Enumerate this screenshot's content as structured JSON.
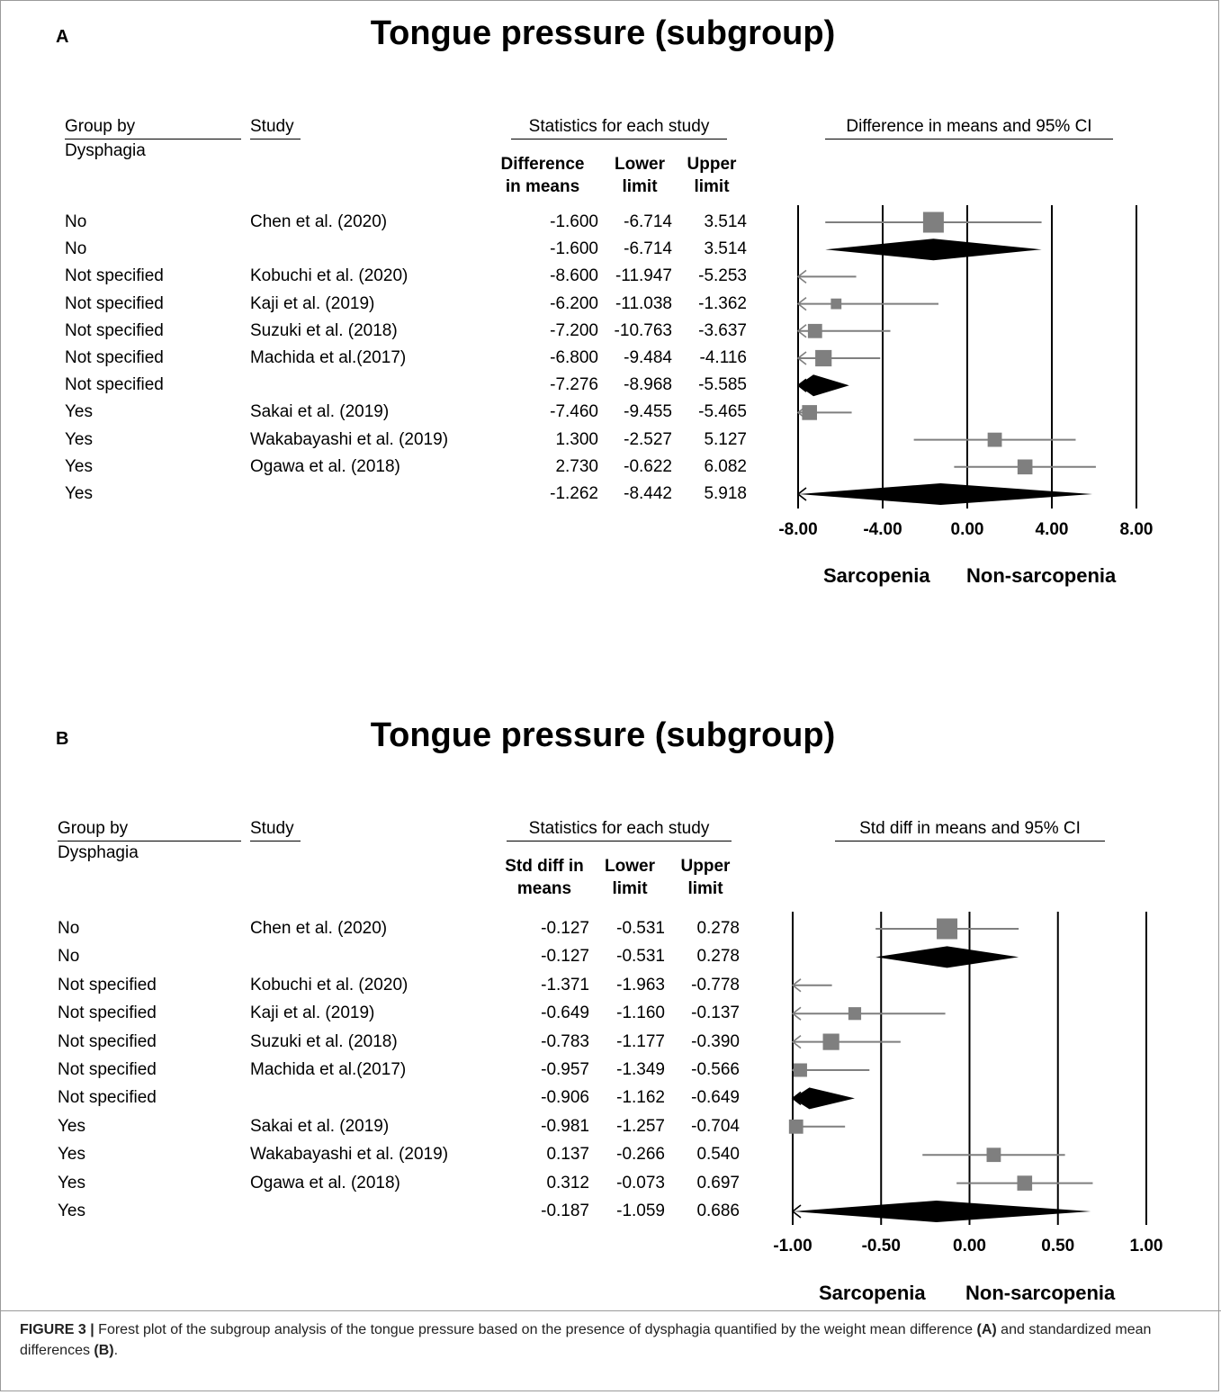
{
  "panels": [
    {
      "letter": "A",
      "title": "Tongue pressure (subgroup)",
      "headers": {
        "group": "Group by",
        "group_sub": "Dysphagia",
        "study": "Study",
        "stats": "Statistics for each study",
        "plot": "Difference in means and 95% CI",
        "col1": "Difference in means",
        "col2": "Lower limit",
        "col3": "Upper limit"
      },
      "rows": [
        {
          "group": "No",
          "study": "Chen et al. (2020)",
          "est": "-1.600",
          "lower": "-6.714",
          "upper": "3.514"
        },
        {
          "group": "No",
          "study": "",
          "est": "-1.600",
          "lower": "-6.714",
          "upper": "3.514"
        },
        {
          "group": "Not specified",
          "study": "Kobuchi et al. (2020)",
          "est": "-8.600",
          "lower": "-11.947",
          "upper": "-5.253"
        },
        {
          "group": "Not specified",
          "study": "Kaji et al.  (2019)",
          "est": "-6.200",
          "lower": "-11.038",
          "upper": "-1.362"
        },
        {
          "group": "Not specified",
          "study": "Suzuki et al. (2018)",
          "est": "-7.200",
          "lower": "-10.763",
          "upper": "-3.637"
        },
        {
          "group": "Not specified",
          "study": "Machida et al.(2017)",
          "est": "-6.800",
          "lower": "-9.484",
          "upper": "-4.116"
        },
        {
          "group": "Not specified",
          "study": "",
          "est": "-7.276",
          "lower": "-8.968",
          "upper": "-5.585"
        },
        {
          "group": "Yes",
          "study": "Sakai et al. (2019)",
          "est": "-7.460",
          "lower": "-9.455",
          "upper": "-5.465"
        },
        {
          "group": "Yes",
          "study": "Wakabayashi et al. (2019)",
          "est": "1.300",
          "lower": "-2.527",
          "upper": "5.127"
        },
        {
          "group": "Yes",
          "study": "Ogawa et al. (2018)",
          "est": "2.730",
          "lower": "-0.622",
          "upper": "6.082"
        },
        {
          "group": "Yes",
          "study": "",
          "est": "-1.262",
          "lower": "-8.442",
          "upper": "5.918"
        }
      ],
      "axis_labels": [
        "-8.00",
        "-4.00",
        "0.00",
        "4.00",
        "8.00"
      ],
      "favours_left": "Sarcopenia",
      "favours_right": "Non-sarcopenia"
    },
    {
      "letter": "B",
      "title": "Tongue pressure (subgroup)",
      "headers": {
        "group": "Group by",
        "group_sub": "Dysphagia",
        "study": "Study",
        "stats": "Statistics for each study",
        "plot": "Std diff in means and 95% CI",
        "col1": "Std diff in means",
        "col2": "Lower limit",
        "col3": "Upper limit"
      },
      "rows": [
        {
          "group": "No",
          "study": "Chen et al. (2020)",
          "est": "-0.127",
          "lower": "-0.531",
          "upper": "0.278"
        },
        {
          "group": "No",
          "study": "",
          "est": "-0.127",
          "lower": "-0.531",
          "upper": "0.278"
        },
        {
          "group": "Not specified",
          "study": "Kobuchi et al. (2020)",
          "est": "-1.371",
          "lower": "-1.963",
          "upper": "-0.778"
        },
        {
          "group": "Not specified",
          "study": "Kaji et al.  (2019)",
          "est": "-0.649",
          "lower": "-1.160",
          "upper": "-0.137"
        },
        {
          "group": "Not specified",
          "study": "Suzuki et al. (2018)",
          "est": "-0.783",
          "lower": "-1.177",
          "upper": "-0.390"
        },
        {
          "group": "Not specified",
          "study": "Machida et al.(2017)",
          "est": "-0.957",
          "lower": "-1.349",
          "upper": "-0.566"
        },
        {
          "group": "Not specified",
          "study": "",
          "est": "-0.906",
          "lower": "-1.162",
          "upper": "-0.649"
        },
        {
          "group": "Yes",
          "study": "Sakai et al. (2019)",
          "est": "-0.981",
          "lower": "-1.257",
          "upper": "-0.704"
        },
        {
          "group": "Yes",
          "study": "Wakabayashi et al. (2019)",
          "est": "0.137",
          "lower": "-0.266",
          "upper": "0.540"
        },
        {
          "group": "Yes",
          "study": "Ogawa et al. (2018)",
          "est": "0.312",
          "lower": "-0.073",
          "upper": "0.697"
        },
        {
          "group": "Yes",
          "study": "",
          "est": "-0.187",
          "lower": "-1.059",
          "upper": "0.686"
        }
      ],
      "axis_labels": [
        "-1.00",
        "-0.50",
        "0.00",
        "0.50",
        "1.00"
      ],
      "favours_left": "Sarcopenia",
      "favours_right": "Non-sarcopenia"
    }
  ],
  "caption": {
    "label": "FIGURE 3 |",
    "text1": " Forest plot of the subgroup analysis of the tongue pressure based on the presence of dysphagia quantified by the weight mean difference ",
    "ref_a": "(A)",
    "text2": " and standardized mean differences ",
    "ref_b": "(B)",
    "text3": "."
  },
  "chart_data": [
    {
      "type": "forest",
      "title": "Tongue pressure (subgroup)",
      "xlabel": "Difference in means and 95% CI",
      "xlim": [
        -8,
        8
      ],
      "ticks": [
        -8,
        -4,
        0,
        4,
        8
      ],
      "favours": [
        "Sarcopenia",
        "Non-sarcopenia"
      ],
      "points": [
        {
          "kind": "study",
          "est": -1.6,
          "lower": -6.714,
          "upper": 3.514,
          "weight": 1.0
        },
        {
          "kind": "summary",
          "est": -1.6,
          "lower": -6.714,
          "upper": 3.514
        },
        {
          "kind": "study",
          "est": -8.6,
          "lower": -11.947,
          "upper": -5.253,
          "weight": 0.0
        },
        {
          "kind": "study",
          "est": -6.2,
          "lower": -11.038,
          "upper": -1.362,
          "weight": 0.3
        },
        {
          "kind": "study",
          "est": -7.2,
          "lower": -10.763,
          "upper": -3.637,
          "weight": 0.55
        },
        {
          "kind": "study",
          "est": -6.8,
          "lower": -9.484,
          "upper": -4.116,
          "weight": 0.7
        },
        {
          "kind": "summary",
          "est": -7.276,
          "lower": -8.968,
          "upper": -5.585
        },
        {
          "kind": "study",
          "est": -7.46,
          "lower": -9.455,
          "upper": -5.465,
          "weight": 0.6
        },
        {
          "kind": "study",
          "est": 1.3,
          "lower": -2.527,
          "upper": 5.127,
          "weight": 0.55
        },
        {
          "kind": "study",
          "est": 2.73,
          "lower": -0.622,
          "upper": 6.082,
          "weight": 0.6
        },
        {
          "kind": "summary",
          "est": -1.262,
          "lower": -8.442,
          "upper": 5.918
        }
      ]
    },
    {
      "type": "forest",
      "title": "Tongue pressure (subgroup)",
      "xlabel": "Std diff in means and 95% CI",
      "xlim": [
        -1,
        1
      ],
      "ticks": [
        -1,
        -0.5,
        0,
        0.5,
        1
      ],
      "favours": [
        "Sarcopenia",
        "Non-sarcopenia"
      ],
      "points": [
        {
          "kind": "study",
          "est": -0.127,
          "lower": -0.531,
          "upper": 0.278,
          "weight": 1.0
        },
        {
          "kind": "summary",
          "est": -0.127,
          "lower": -0.531,
          "upper": 0.278
        },
        {
          "kind": "study",
          "est": -1.371,
          "lower": -1.963,
          "upper": -0.778,
          "weight": 0.0
        },
        {
          "kind": "study",
          "est": -0.649,
          "lower": -1.16,
          "upper": -0.137,
          "weight": 0.45
        },
        {
          "kind": "study",
          "est": -0.783,
          "lower": -1.177,
          "upper": -0.39,
          "weight": 0.7
        },
        {
          "kind": "study",
          "est": -0.957,
          "lower": -1.349,
          "upper": -0.566,
          "weight": 0.5
        },
        {
          "kind": "summary",
          "est": -0.906,
          "lower": -1.162,
          "upper": -0.649
        },
        {
          "kind": "study",
          "est": -0.981,
          "lower": -1.257,
          "upper": -0.704,
          "weight": 0.55
        },
        {
          "kind": "study",
          "est": 0.137,
          "lower": -0.266,
          "upper": 0.54,
          "weight": 0.55
        },
        {
          "kind": "study",
          "est": 0.312,
          "lower": -0.073,
          "upper": 0.697,
          "weight": 0.6
        },
        {
          "kind": "summary",
          "est": -0.187,
          "lower": -1.059,
          "upper": 0.686
        }
      ]
    }
  ]
}
